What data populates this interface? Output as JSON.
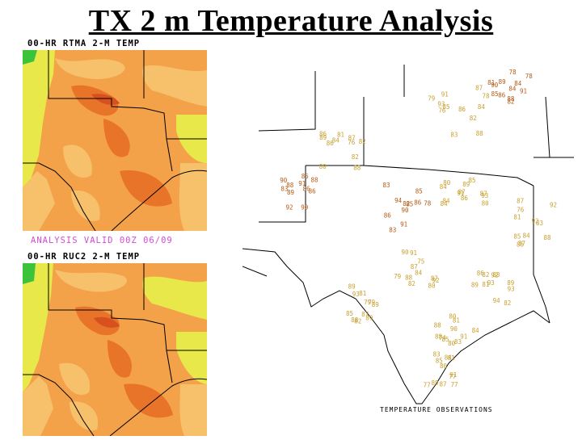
{
  "slide": {
    "title": "TX 2 m Temperature Analysis"
  },
  "rtma_panel": {
    "label": "00-HR RTMA 2-M TEMP"
  },
  "analysis_valid": {
    "text": "ANALYSIS VALID  00Z  06/09"
  },
  "ruc_panel": {
    "label": "00-HR RUC2  2-M TEMP"
  },
  "observations": {
    "caption": "TEMPERATURE OBSERVATIONS",
    "values": [
      "84",
      "79",
      "87",
      "80",
      "86",
      "82",
      "88",
      "81",
      "85",
      "83",
      "89",
      "77",
      "90",
      "78",
      "91",
      "76",
      "92",
      "75",
      "93",
      "74",
      "94",
      "86",
      "88",
      "85",
      "84",
      "82",
      "80",
      "81",
      "83",
      "87",
      "89",
      "90",
      "91",
      "92",
      "93",
      "84",
      "86",
      "88",
      "80",
      "82",
      "85",
      "87",
      "89",
      "91",
      "83",
      "81",
      "79",
      "77",
      "88",
      "86",
      "84",
      "82",
      "90",
      "92",
      "94",
      "85",
      "83",
      "87",
      "89",
      "81",
      "78",
      "76",
      "84",
      "86",
      "88",
      "90",
      "92",
      "80",
      "82",
      "85",
      "87",
      "89",
      "91",
      "93",
      "84",
      "86",
      "88",
      "79",
      "81",
      "83",
      "85",
      "87",
      "89",
      "91",
      "82",
      "84",
      "86",
      "88",
      "90",
      "80",
      "82",
      "84",
      "86",
      "88",
      "79",
      "77",
      "81",
      "83",
      "85",
      "87",
      "89",
      "91",
      "93",
      "88",
      "86",
      "84",
      "82",
      "80",
      "78",
      "85",
      "87",
      "89",
      "91",
      "84",
      "86",
      "88",
      "90",
      "92",
      "81",
      "83",
      "85",
      "87",
      "89",
      "84",
      "86",
      "88",
      "82",
      "80",
      "78",
      "76",
      "85",
      "87",
      "89",
      "91",
      "93"
    ]
  },
  "colors": {
    "map_orange": "#f4a24a",
    "map_light_orange": "#f7c06a",
    "map_yellow": "#e8e84a",
    "map_dark_orange": "#e8742a",
    "map_red": "#d8501e",
    "map_green": "#3cc33c",
    "valid_text": "#d34ad6",
    "obs_text": "#c8a030",
    "obs_text_dark": "#b45a14"
  }
}
